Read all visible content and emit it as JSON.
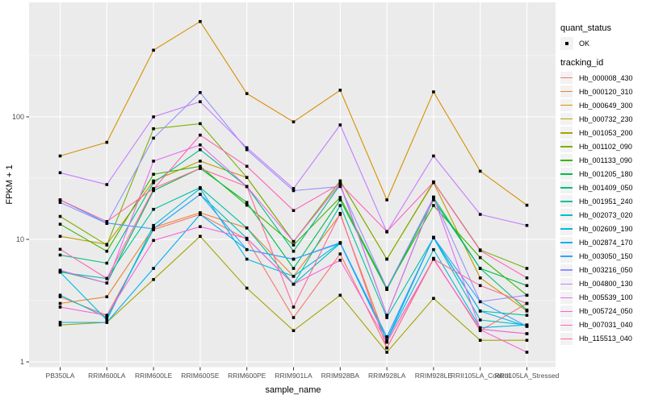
{
  "figure": {
    "panel_bg": "#EBEBEB",
    "grid_color": "#FFFFFF",
    "tick_color": "#333333",
    "tick_label_color": "#4D4D4D",
    "point_color": "#000000"
  },
  "legend": {
    "shape_title": "quant_status",
    "shape_item": "OK",
    "color_title": "tracking_id"
  },
  "y_axis": {
    "title": "FPKM + 1",
    "scale": "log10",
    "major_ticks": [
      {
        "label": "1",
        "value": 1
      },
      {
        "label": "10",
        "value": 10
      },
      {
        "label": "100",
        "value": 100
      }
    ],
    "minor_breaks": [
      3.162,
      31.62,
      316.2
    ]
  },
  "x_axis": {
    "title": "sample_name"
  },
  "chart_data": {
    "type": "line",
    "title": "",
    "xlabel": "sample_name",
    "ylabel": "FPKM + 1",
    "yscale": "log10",
    "ylim": [
      1,
      700
    ],
    "grid": true,
    "legend_position": "right",
    "point_shape": "filled-square-black",
    "categories": [
      "PB350LA",
      "RRIM600LA",
      "RRIM600LE",
      "RRIM600SE",
      "RRIM600PE",
      "RRIM901LA",
      "RRIM928BA",
      "RRIM928LA",
      "RRIM928LE",
      "RRII105LA_Control",
      "RRII105LA_Stressed"
    ],
    "series": [
      {
        "name": "Hb_000008_430",
        "color": "#F8766D",
        "values": [
          3.4,
          2.4,
          12,
          16,
          10,
          2.3,
          7.6,
          1.3,
          7,
          1.8,
          3
        ]
      },
      {
        "name": "Hb_000120_310",
        "color": "#EA8331",
        "values": [
          3,
          3.4,
          12.5,
          16.5,
          12.4,
          5,
          16,
          1.45,
          6.9,
          1.85,
          1.7
        ]
      },
      {
        "name": "Hb_000649_300",
        "color": "#D89000",
        "values": [
          48,
          62,
          350,
          600,
          155,
          91,
          165,
          21,
          160,
          36,
          19
        ]
      },
      {
        "name": "Hb_000732_230",
        "color": "#C09B00",
        "values": [
          10.6,
          9.1,
          30,
          43.5,
          32,
          9.6,
          30,
          6.9,
          29,
          4.85,
          2.6
        ]
      },
      {
        "name": "Hb_001053_200",
        "color": "#A3A500",
        "values": [
          2,
          2.1,
          4.7,
          10.6,
          4,
          1.8,
          3.5,
          1.2,
          3.3,
          1.5,
          1.5
        ]
      },
      {
        "name": "Hb_001102_090",
        "color": "#7CAE00",
        "values": [
          15.4,
          9,
          80,
          88,
          32,
          9.6,
          30,
          6.9,
          29.5,
          8.2,
          5.8
        ]
      },
      {
        "name": "Hb_001133_090",
        "color": "#39B600",
        "values": [
          13.3,
          8,
          34,
          39.5,
          19,
          9,
          22,
          4,
          18.9,
          7.1,
          3.5
        ]
      },
      {
        "name": "Hb_001205_180",
        "color": "#00BB4E",
        "values": [
          5.5,
          4.4,
          25,
          38,
          20,
          5.8,
          21,
          3.9,
          21,
          5.8,
          4.2
        ]
      },
      {
        "name": "Hb_001409_050",
        "color": "#00BF7D",
        "values": [
          7.45,
          6.4,
          29,
          54,
          27,
          8,
          28,
          2.4,
          22,
          5.8,
          2.65
        ]
      },
      {
        "name": "Hb_001951_240",
        "color": "#00C1A3",
        "values": [
          5.4,
          4.8,
          17.6,
          26.5,
          12.4,
          4.3,
          18.9,
          2.3,
          10.3,
          2.6,
          2.4
        ]
      },
      {
        "name": "Hb_002073_020",
        "color": "#00BFC4",
        "values": [
          3.5,
          2.3,
          12.2,
          23.3,
          10.2,
          4.3,
          9.3,
          1.6,
          10.3,
          2.2,
          2
        ]
      },
      {
        "name": "Hb_002609_190",
        "color": "#00BAE0",
        "values": [
          5.4,
          2.2,
          13,
          26,
          6.9,
          5,
          9.4,
          1.5,
          8.25,
          1.9,
          2
        ]
      },
      {
        "name": "Hb_002874_170",
        "color": "#00B0F6",
        "values": [
          2.1,
          2.1,
          5.8,
          16,
          8.25,
          6.9,
          9.3,
          1.5,
          10.4,
          2.6,
          1.95
        ]
      },
      {
        "name": "Hb_003050_150",
        "color": "#35A2FF",
        "values": [
          21,
          13.6,
          12.2,
          23.3,
          8.25,
          6.9,
          9.4,
          1.6,
          10.4,
          3.1,
          1.95
        ]
      },
      {
        "name": "Hb_003216_050",
        "color": "#9590FF",
        "values": [
          20,
          13.5,
          67,
          158,
          54,
          25,
          27,
          4,
          22,
          3.1,
          3.5
        ]
      },
      {
        "name": "Hb_004800_130",
        "color": "#C77CFF",
        "values": [
          35,
          28,
          100,
          133,
          56,
          26,
          86,
          11.5,
          48,
          16,
          13
        ]
      },
      {
        "name": "Hb_005539_100",
        "color": "#E76BF3",
        "values": [
          5.6,
          4.4,
          43.5,
          59,
          27,
          9.6,
          28.5,
          2.4,
          22.2,
          1.85,
          1.7
        ]
      },
      {
        "name": "Hb_005724_050",
        "color": "#FA62DB",
        "values": [
          2.8,
          2.4,
          9.8,
          12.7,
          10.2,
          4.3,
          6.75,
          1.45,
          6.9,
          1.83,
          1.2
        ]
      },
      {
        "name": "Hb_007031_040",
        "color": "#FF62BC",
        "values": [
          8.3,
          4.8,
          25.7,
          71,
          39.5,
          17.2,
          28.5,
          11.6,
          29.3,
          8.1,
          4.85
        ]
      },
      {
        "name": "Hb_115513_040",
        "color": "#FF6A98",
        "values": [
          21,
          14,
          26,
          38,
          27,
          2.8,
          16.3,
          1.3,
          6.9,
          4.2,
          3
        ]
      }
    ]
  }
}
